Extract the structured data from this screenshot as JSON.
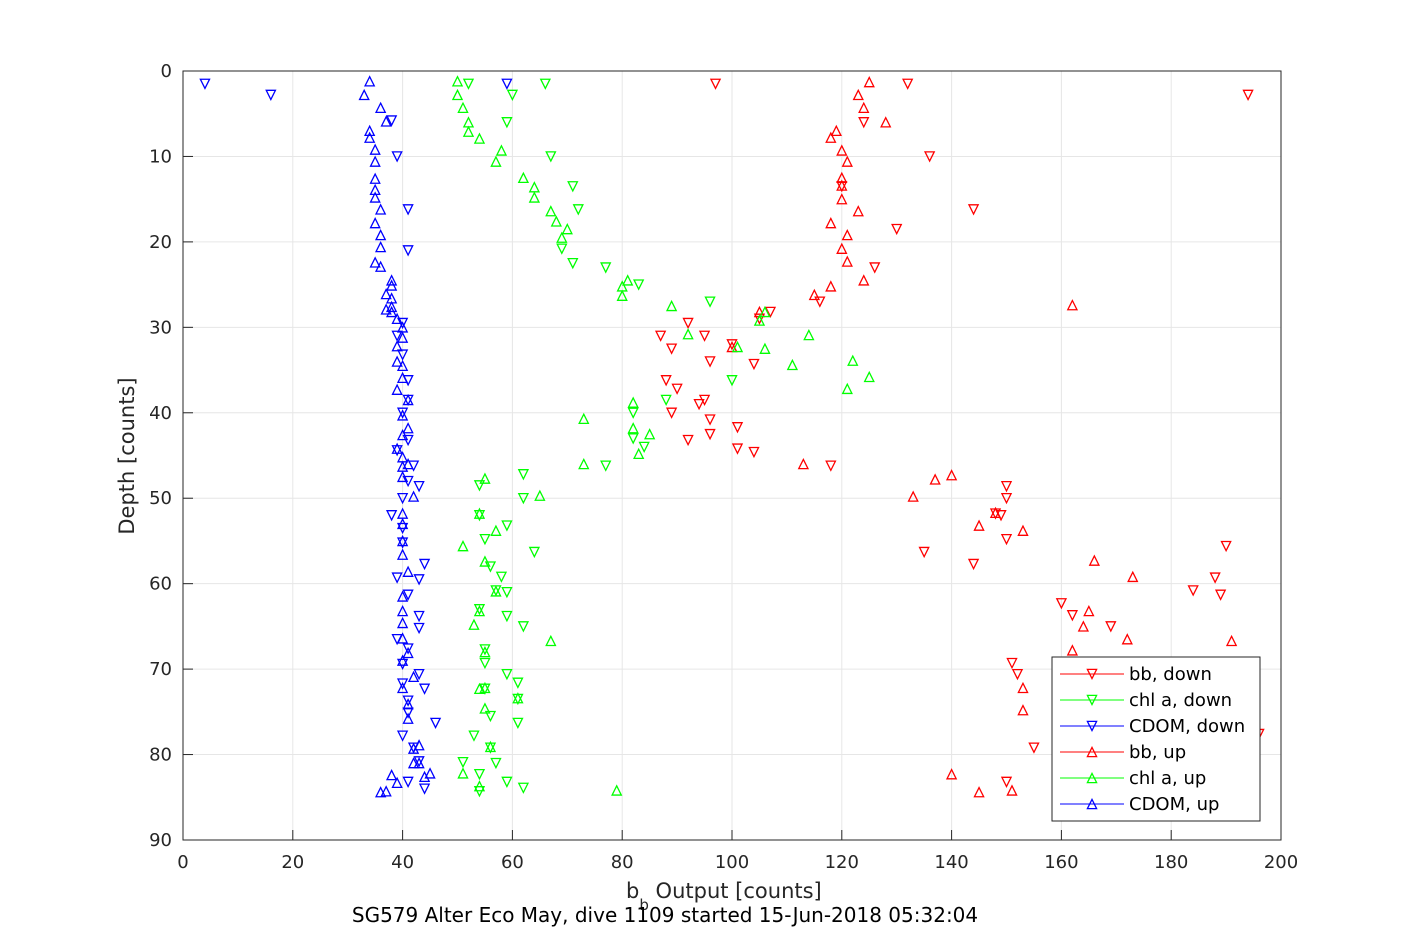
{
  "chart_data": {
    "type": "scatter",
    "xlabel_main": "b",
    "xlabel_sub": "b",
    "xlabel_rest": " Output [counts]",
    "ylabel": "Depth [counts]",
    "caption": "SG579 Alter Eco May, dive 1109 started 15-Jun-2018 05:32:04",
    "xlim": [
      0,
      200
    ],
    "ylim": [
      0,
      90
    ],
    "y_reversed": true,
    "grid": true,
    "legend_position": "bottom-right",
    "x_ticks": [
      "0",
      "20",
      "40",
      "60",
      "80",
      "100",
      "120",
      "140",
      "160",
      "180",
      "200"
    ],
    "y_ticks": [
      "0",
      "10",
      "20",
      "30",
      "40",
      "50",
      "60",
      "70",
      "80",
      "90"
    ],
    "series": [
      {
        "name": "bb, down",
        "color": "#ff0000",
        "marker": "triangle-down",
        "points": [
          [
            97,
            1.5
          ],
          [
            132,
            1.5
          ],
          [
            194,
            2.8
          ],
          [
            124,
            6
          ],
          [
            136,
            10
          ],
          [
            120,
            13.5
          ],
          [
            144,
            16.2
          ],
          [
            130,
            18.5
          ],
          [
            126,
            23
          ],
          [
            116,
            27
          ],
          [
            107,
            28.2
          ],
          [
            105,
            29
          ],
          [
            92,
            29.5
          ],
          [
            87,
            31
          ],
          [
            95,
            31
          ],
          [
            89,
            32.5
          ],
          [
            100,
            32
          ],
          [
            104,
            34.3
          ],
          [
            96,
            34
          ],
          [
            88,
            36.2
          ],
          [
            90,
            37.2
          ],
          [
            95,
            38.5
          ],
          [
            94,
            39
          ],
          [
            89,
            40
          ],
          [
            96,
            40.8
          ],
          [
            101,
            41.7
          ],
          [
            96,
            42.5
          ],
          [
            92,
            43.2
          ],
          [
            101,
            44.2
          ],
          [
            104,
            44.6
          ],
          [
            118,
            46.2
          ],
          [
            150,
            48.6
          ],
          [
            150,
            50
          ],
          [
            148,
            51.8
          ],
          [
            149,
            52
          ],
          [
            150,
            54.8
          ],
          [
            135,
            56.3
          ],
          [
            144,
            57.7
          ],
          [
            190,
            55.6
          ],
          [
            188,
            59.3
          ],
          [
            184,
            60.8
          ],
          [
            189,
            61.3
          ],
          [
            160,
            62.3
          ],
          [
            162,
            63.7
          ],
          [
            169,
            65
          ],
          [
            151,
            69.3
          ],
          [
            152,
            70.6
          ],
          [
            155,
            79.2
          ],
          [
            150,
            83.2
          ],
          [
            196,
            77.6
          ]
        ]
      },
      {
        "name": "chl a, down",
        "color": "#00ff00",
        "marker": "triangle-down",
        "points": [
          [
            52,
            1.5
          ],
          [
            66,
            1.5
          ],
          [
            60,
            2.8
          ],
          [
            59,
            6
          ],
          [
            67,
            10
          ],
          [
            71,
            13.5
          ],
          [
            72,
            16.2
          ],
          [
            69,
            20.8
          ],
          [
            71,
            22.5
          ],
          [
            77,
            23
          ],
          [
            83,
            25
          ],
          [
            96,
            27
          ],
          [
            100,
            36.2
          ],
          [
            82,
            40
          ],
          [
            82,
            43
          ],
          [
            88,
            38.5
          ],
          [
            84,
            44
          ],
          [
            77,
            46.2
          ],
          [
            62,
            47.2
          ],
          [
            54,
            48.5
          ],
          [
            62,
            50
          ],
          [
            54,
            52
          ],
          [
            59,
            53.2
          ],
          [
            55,
            54.8
          ],
          [
            64,
            56.3
          ],
          [
            56,
            58
          ],
          [
            58,
            59.2
          ],
          [
            57,
            60.8
          ],
          [
            59,
            61
          ],
          [
            54,
            63
          ],
          [
            59,
            63.8
          ],
          [
            62,
            65
          ],
          [
            55,
            67.7
          ],
          [
            55,
            69.3
          ],
          [
            59,
            70.6
          ],
          [
            61,
            71.6
          ],
          [
            55,
            72.3
          ],
          [
            61,
            73.5
          ],
          [
            56,
            75.5
          ],
          [
            61,
            76.3
          ],
          [
            53,
            77.8
          ],
          [
            56,
            79.2
          ],
          [
            51,
            80.9
          ],
          [
            57,
            81
          ],
          [
            54,
            82.3
          ],
          [
            59,
            83.2
          ],
          [
            62,
            83.9
          ],
          [
            54,
            84.3
          ]
        ]
      },
      {
        "name": "CDOM, down",
        "color": "#0000ff",
        "marker": "triangle-down",
        "points": [
          [
            4,
            1.5
          ],
          [
            16,
            2.8
          ],
          [
            59,
            1.5
          ],
          [
            38,
            5.8
          ],
          [
            39,
            10
          ],
          [
            41,
            16.2
          ],
          [
            41,
            21
          ],
          [
            40,
            29.5
          ],
          [
            39,
            31
          ],
          [
            40,
            33.2
          ],
          [
            41,
            36.2
          ],
          [
            41,
            38.5
          ],
          [
            40,
            40
          ],
          [
            41,
            43.2
          ],
          [
            39,
            44.4
          ],
          [
            42,
            46.2
          ],
          [
            41,
            48
          ],
          [
            43,
            48.6
          ],
          [
            40,
            50
          ],
          [
            38,
            52
          ],
          [
            40,
            53.5
          ],
          [
            40,
            55.2
          ],
          [
            44,
            57.7
          ],
          [
            39,
            59.3
          ],
          [
            43,
            59.5
          ],
          [
            41,
            61.3
          ],
          [
            43,
            63.8
          ],
          [
            43,
            65.2
          ],
          [
            39,
            66.5
          ],
          [
            41,
            67.6
          ],
          [
            40,
            69.4
          ],
          [
            43,
            70.6
          ],
          [
            40,
            71.7
          ],
          [
            44,
            72.3
          ],
          [
            41,
            73.7
          ],
          [
            41,
            75.1
          ],
          [
            46,
            76.3
          ],
          [
            40,
            77.8
          ],
          [
            42,
            79.2
          ],
          [
            43,
            80.8
          ],
          [
            41,
            83.2
          ],
          [
            44,
            84
          ]
        ]
      },
      {
        "name": "bb, up",
        "color": "#ff0000",
        "marker": "triangle-up",
        "points": [
          [
            125,
            1.3
          ],
          [
            123,
            2.8
          ],
          [
            124,
            4.3
          ],
          [
            128,
            6
          ],
          [
            119,
            7
          ],
          [
            118,
            7.8
          ],
          [
            120,
            9.3
          ],
          [
            121,
            10.6
          ],
          [
            120,
            12.5
          ],
          [
            120,
            13.4
          ],
          [
            120,
            15
          ],
          [
            123,
            16.4
          ],
          [
            118,
            17.8
          ],
          [
            121,
            19.2
          ],
          [
            120,
            20.8
          ],
          [
            121,
            22.3
          ],
          [
            124,
            24.5
          ],
          [
            118,
            25.2
          ],
          [
            115,
            26.2
          ],
          [
            105,
            28.2
          ],
          [
            162,
            27.4
          ],
          [
            100,
            32.3
          ],
          [
            113,
            46
          ],
          [
            140,
            47.3
          ],
          [
            137,
            47.8
          ],
          [
            133,
            49.8
          ],
          [
            148,
            51.7
          ],
          [
            145,
            53.2
          ],
          [
            153,
            53.8
          ],
          [
            166,
            57.3
          ],
          [
            173,
            59.2
          ],
          [
            165,
            63.2
          ],
          [
            164,
            65
          ],
          [
            172,
            66.5
          ],
          [
            191,
            66.7
          ],
          [
            162,
            67.8
          ],
          [
            153,
            72.2
          ],
          [
            153,
            74.8
          ],
          [
            140,
            82.3
          ],
          [
            151,
            84.2
          ],
          [
            145,
            84.4
          ]
        ]
      },
      {
        "name": "chl a, up",
        "color": "#00ff00",
        "marker": "triangle-up",
        "points": [
          [
            50,
            1.2
          ],
          [
            50,
            2.8
          ],
          [
            51,
            4.3
          ],
          [
            52,
            6
          ],
          [
            52,
            7.1
          ],
          [
            54,
            7.9
          ],
          [
            58,
            9.3
          ],
          [
            57,
            10.6
          ],
          [
            62,
            12.5
          ],
          [
            64,
            13.6
          ],
          [
            64,
            14.8
          ],
          [
            67,
            16.4
          ],
          [
            68,
            17.6
          ],
          [
            70,
            18.5
          ],
          [
            69,
            19.5
          ],
          [
            81,
            24.5
          ],
          [
            80,
            25.2
          ],
          [
            80,
            26.3
          ],
          [
            89,
            27.5
          ],
          [
            92,
            30.8
          ],
          [
            106,
            28.2
          ],
          [
            105,
            29.2
          ],
          [
            114,
            30.9
          ],
          [
            101,
            32.3
          ],
          [
            106,
            32.5
          ],
          [
            111,
            34.4
          ],
          [
            122,
            33.9
          ],
          [
            125,
            35.8
          ],
          [
            121,
            37.2
          ],
          [
            73,
            40.7
          ],
          [
            82,
            38.8
          ],
          [
            82,
            41.8
          ],
          [
            85,
            42.5
          ],
          [
            83,
            44.8
          ],
          [
            73,
            46
          ],
          [
            55,
            47.7
          ],
          [
            65,
            49.7
          ],
          [
            54,
            51.8
          ],
          [
            57,
            53.8
          ],
          [
            51,
            55.6
          ],
          [
            55,
            57.4
          ],
          [
            57,
            60.9
          ],
          [
            54,
            63.2
          ],
          [
            53,
            64.8
          ],
          [
            67,
            66.7
          ],
          [
            55,
            68
          ],
          [
            55,
            72.2
          ],
          [
            54,
            72.3
          ],
          [
            61,
            73.4
          ],
          [
            55,
            74.6
          ],
          [
            51,
            82.2
          ],
          [
            56,
            79.1
          ],
          [
            79,
            84.2
          ],
          [
            54,
            83.7
          ]
        ]
      },
      {
        "name": "CDOM, up",
        "color": "#0000ff",
        "marker": "triangle-up",
        "points": [
          [
            34,
            1.2
          ],
          [
            33,
            2.8
          ],
          [
            36,
            4.3
          ],
          [
            37,
            5.9
          ],
          [
            34,
            7
          ],
          [
            34,
            7.8
          ],
          [
            35,
            9.2
          ],
          [
            35,
            10.6
          ],
          [
            35,
            12.6
          ],
          [
            35,
            13.9
          ],
          [
            35,
            14.8
          ],
          [
            36,
            16.2
          ],
          [
            35,
            17.8
          ],
          [
            36,
            19.2
          ],
          [
            36,
            20.6
          ],
          [
            35,
            22.4
          ],
          [
            36,
            22.9
          ],
          [
            38,
            24.5
          ],
          [
            38,
            25.1
          ],
          [
            37,
            26.1
          ],
          [
            38,
            26.6
          ],
          [
            38,
            27.6
          ],
          [
            37,
            27.9
          ],
          [
            38,
            28.2
          ],
          [
            39,
            29
          ],
          [
            40,
            30
          ],
          [
            40,
            31.2
          ],
          [
            39,
            32.2
          ],
          [
            39,
            34
          ],
          [
            40,
            34.5
          ],
          [
            40,
            35.9
          ],
          [
            39,
            37.3
          ],
          [
            41,
            38.5
          ],
          [
            40,
            40.3
          ],
          [
            41,
            41.8
          ],
          [
            40,
            42.6
          ],
          [
            39,
            44.2
          ],
          [
            40,
            45.2
          ],
          [
            40,
            46.3
          ],
          [
            41,
            46
          ],
          [
            40,
            47.5
          ],
          [
            42,
            49.8
          ],
          [
            40,
            51.8
          ],
          [
            40,
            53
          ],
          [
            40,
            55
          ],
          [
            40,
            56.6
          ],
          [
            41,
            58.6
          ],
          [
            40,
            61.5
          ],
          [
            40,
            63.2
          ],
          [
            40,
            64.6
          ],
          [
            40,
            66.4
          ],
          [
            41,
            68.1
          ],
          [
            40,
            69
          ],
          [
            42,
            70.9
          ],
          [
            40,
            72.2
          ],
          [
            41,
            74.1
          ],
          [
            41,
            75.8
          ],
          [
            43,
            78.9
          ],
          [
            42,
            79.3
          ],
          [
            43,
            81
          ],
          [
            42,
            81
          ],
          [
            44,
            82.6
          ],
          [
            38,
            82.4
          ],
          [
            45,
            82.2
          ],
          [
            39,
            83.3
          ],
          [
            37,
            84.3
          ],
          [
            36,
            84.4
          ]
        ]
      }
    ]
  }
}
